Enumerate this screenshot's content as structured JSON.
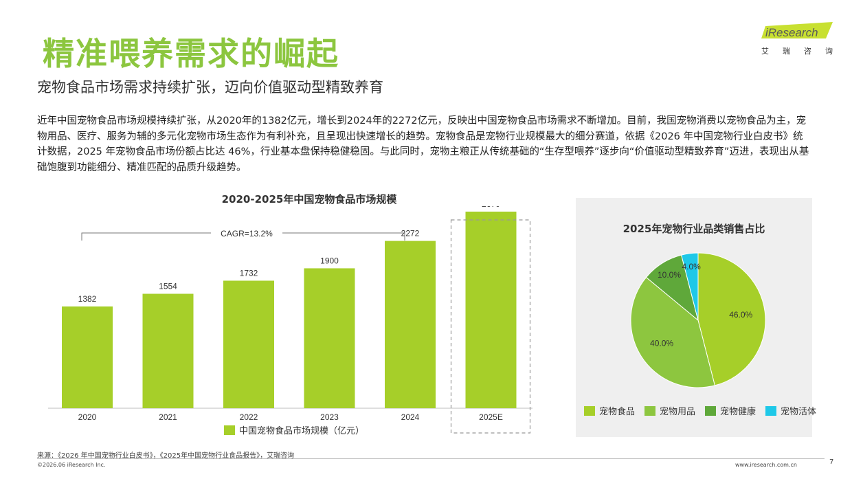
{
  "header": {
    "title": "精准喂养需求的崛起",
    "subtitle": "宠物食品市场需求持续扩张，迈向价值驱动型精致养育",
    "logo_text": "iResearch",
    "logo_tagline": [
      "艾",
      "瑞",
      "咨",
      "询"
    ]
  },
  "body_text": "近年中国宠物食品市场规模持续扩张，从2020年的1382亿元，增长到2024年的2272亿元，反映出中国宠物食品市场需求不断增加。目前，我国宠物消费以宠物食品为主，宠物用品、医疗、服务为辅的多元化宠物市场生态作为有利补充，且呈现出快速增长的趋势。宠物食品是宠物行业规模最大的细分赛道，依据《2026 年中国宠物行业白皮书》统计数据，2025 年宠物食品市场份额占比达 46%，行业基本盘保持稳健稳固。与此同时，宠物主粮正从传统基础的“生存型喂养”逐步向“价值驱动型精致养育”迈进，表现出从基础饱腹到功能细分、精准匹配的品质升级趋势。",
  "chart_data": [
    {
      "type": "bar",
      "title": "2020-2025年中国宠物食品市场规模",
      "categories": [
        "2020",
        "2021",
        "2022",
        "2023",
        "2024",
        "2025E"
      ],
      "series": [
        {
          "name": "中国宠物食品市场规模（亿元）",
          "values": [
            1382,
            1554,
            1732,
            1900,
            2272,
            2670
          ]
        }
      ],
      "annotation": "CAGR=13.2%",
      "highlight_category": "2025E",
      "ylim": [
        0,
        2800
      ],
      "grid": false,
      "legend": "bottom",
      "color": "#a6cf29"
    },
    {
      "type": "pie",
      "title": "2025年宠物行业品类销售占比",
      "labels": [
        "宠物食品",
        "宠物用品",
        "宠物健康",
        "宠物活体"
      ],
      "values": [
        46.0,
        40.0,
        10.0,
        4.0
      ],
      "value_labels": [
        "46.0%",
        "40.0%",
        "10.0%",
        "4.0%"
      ],
      "colors": [
        "#a6cf29",
        "#8dc63f",
        "#5fa83a",
        "#1ec8e8"
      ],
      "legend": "bottom"
    }
  ],
  "footer": {
    "source": "来源：《2026 年中国宠物行业白皮书》，《2025年中国宠物行业食品报告》，艾瑞咨询",
    "copyright": "©2026.06 iResearch Inc.",
    "website": "www.iresearch.com.cn",
    "page": "7"
  }
}
